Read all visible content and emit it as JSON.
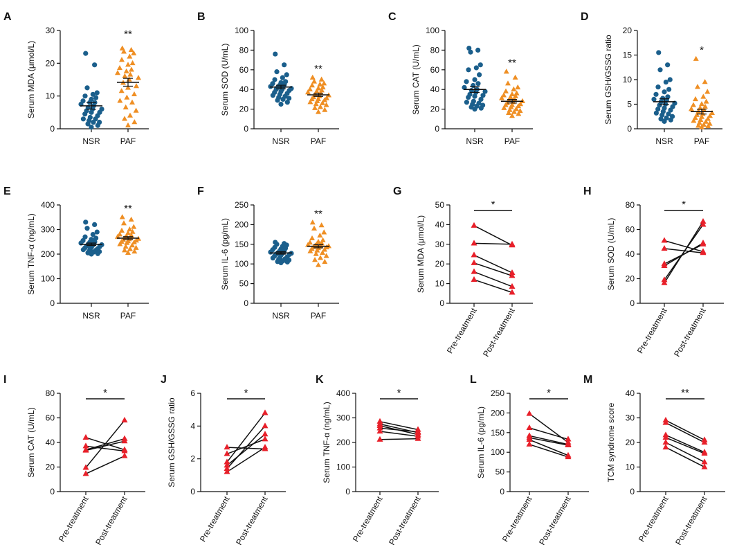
{
  "colors": {
    "nsr": "#1b5f8c",
    "paf": "#ef8f24",
    "pair_marker": "#e8202a",
    "pair_line": "#111111",
    "axis": "#111111"
  },
  "chart_data": [
    {
      "panel": "A",
      "type": "scatter",
      "ylabel": "Serum MDA (μmol/L)",
      "ylim": [
        0,
        30
      ],
      "yticks": [
        0,
        10,
        20,
        30
      ],
      "categories": [
        "NSR",
        "PAF"
      ],
      "significance": "**",
      "series": [
        {
          "name": "NSR",
          "mean": 7.0,
          "sem": 1.0,
          "values": [
            23,
            19.5,
            12.5,
            11,
            10.5,
            10,
            9.5,
            9,
            8.5,
            8,
            8,
            7.5,
            7,
            6.5,
            6,
            6,
            5.5,
            5,
            5,
            4.5,
            4,
            3.5,
            3,
            3,
            2.5,
            2,
            2,
            1.5,
            1,
            0.5
          ]
        },
        {
          "name": "PAF",
          "mean": 14.2,
          "sem": 1.2,
          "values": [
            24.5,
            24,
            23.5,
            23,
            22,
            21,
            20,
            19.5,
            18.5,
            18,
            17.5,
            17,
            16.5,
            16,
            15.5,
            15,
            14,
            13,
            12.5,
            11.5,
            10.5,
            9.5,
            8.5,
            8,
            6.5,
            5.5,
            4,
            3,
            2,
            1
          ]
        }
      ]
    },
    {
      "panel": "B",
      "type": "scatter",
      "ylabel": "Serum SOD (U/mL)",
      "ylim": [
        0,
        100
      ],
      "yticks": [
        0,
        20,
        40,
        60,
        80,
        100
      ],
      "categories": [
        "NSR",
        "PAF"
      ],
      "significance": "**",
      "series": [
        {
          "name": "NSR",
          "mean": 42.5,
          "sem": 1.8,
          "values": [
            76,
            65,
            58,
            55,
            52,
            50,
            48,
            47,
            46,
            45,
            44,
            43,
            43,
            42,
            41,
            40,
            40,
            39,
            38,
            37,
            36,
            35,
            34,
            33,
            32,
            31,
            30,
            29,
            27,
            25
          ]
        },
        {
          "name": "PAF",
          "mean": 34.5,
          "sem": 1.6,
          "values": [
            52,
            50,
            48,
            46,
            45,
            44,
            42,
            41,
            40,
            39,
            38,
            37,
            36,
            35,
            34,
            33,
            32,
            31,
            30,
            30,
            29,
            28,
            27,
            26,
            25,
            24,
            22,
            21,
            19,
            17
          ]
        }
      ]
    },
    {
      "panel": "C",
      "type": "scatter",
      "ylabel": "Serum CAT (U/mL)",
      "ylim": [
        0,
        100
      ],
      "yticks": [
        0,
        20,
        40,
        60,
        80,
        100
      ],
      "categories": [
        "NSR",
        "PAF"
      ],
      "significance": "**",
      "series": [
        {
          "name": "NSR",
          "mean": 40.0,
          "sem": 3.0,
          "values": [
            82,
            80,
            78,
            65,
            62,
            60,
            55,
            50,
            48,
            46,
            44,
            42,
            40,
            39,
            38,
            37,
            35,
            34,
            33,
            32,
            30,
            28,
            27,
            26,
            25,
            24,
            23,
            22,
            21,
            20
          ]
        },
        {
          "name": "PAF",
          "mean": 28.0,
          "sem": 1.8,
          "values": [
            58,
            52,
            46,
            42,
            40,
            38,
            36,
            35,
            34,
            33,
            32,
            31,
            30,
            29,
            28,
            27,
            26,
            25,
            24,
            24,
            23,
            22,
            21,
            20,
            19,
            18,
            17,
            16,
            15,
            13
          ]
        }
      ]
    },
    {
      "panel": "D",
      "type": "scatter",
      "ylabel": "Serum GSH/GSSG ratio",
      "ylim": [
        0,
        20
      ],
      "yticks": [
        0,
        5,
        10,
        15,
        20
      ],
      "categories": [
        "NSR",
        "PAF"
      ],
      "significance": "*",
      "series": [
        {
          "name": "NSR",
          "mean": 5.5,
          "sem": 0.6,
          "values": [
            15.5,
            13,
            12,
            10,
            9.5,
            8.5,
            8,
            7.5,
            7,
            6.5,
            6.2,
            6,
            5.8,
            5.5,
            5.2,
            5,
            4.8,
            4.5,
            4.2,
            4,
            3.8,
            3.5,
            3.2,
            3,
            2.8,
            2.5,
            2.2,
            2,
            1.8,
            1.5
          ]
        },
        {
          "name": "PAF",
          "mean": 3.5,
          "sem": 0.5,
          "values": [
            14.2,
            9.5,
            8.5,
            7.5,
            6.5,
            6,
            5.5,
            5,
            4.8,
            4.5,
            4.2,
            4,
            3.8,
            3.5,
            3.2,
            3,
            2.8,
            2.6,
            2.4,
            2.2,
            2,
            1.8,
            1.6,
            1.4,
            1.2,
            1,
            0.8,
            0.6,
            0.5,
            0.3
          ]
        }
      ]
    },
    {
      "panel": "E",
      "type": "scatter",
      "ylabel": "Serum TNF-α (ng/mL)",
      "ylim": [
        0,
        400
      ],
      "yticks": [
        0,
        100,
        200,
        300,
        400
      ],
      "categories": [
        "NSR",
        "PAF"
      ],
      "significance": "**",
      "series": [
        {
          "name": "NSR",
          "mean": 240,
          "sem": 5,
          "values": [
            330,
            320,
            305,
            290,
            280,
            270,
            265,
            260,
            255,
            250,
            248,
            245,
            242,
            240,
            238,
            235,
            232,
            230,
            228,
            225,
            222,
            220,
            218,
            215,
            212,
            210,
            208,
            205,
            202,
            200
          ]
        },
        {
          "name": "PAF",
          "mean": 265,
          "sem": 6,
          "values": [
            350,
            340,
            325,
            310,
            300,
            295,
            290,
            285,
            280,
            275,
            272,
            270,
            268,
            265,
            262,
            260,
            258,
            255,
            252,
            250,
            248,
            245,
            240,
            235,
            230,
            225,
            220,
            215,
            210,
            205
          ]
        }
      ]
    },
    {
      "panel": "F",
      "type": "scatter",
      "ylabel": "Serum IL-6 (pg/mL)",
      "ylim": [
        0,
        250
      ],
      "yticks": [
        0,
        50,
        100,
        150,
        200,
        250
      ],
      "categories": [
        "NSR",
        "PAF"
      ],
      "significance": "**",
      "series": [
        {
          "name": "NSR",
          "mean": 128,
          "sem": 3,
          "values": [
            155,
            152,
            150,
            148,
            145,
            142,
            140,
            138,
            136,
            134,
            132,
            130,
            129,
            128,
            127,
            126,
            125,
            124,
            122,
            120,
            118,
            116,
            115,
            113,
            112,
            110,
            108,
            106,
            105,
            103
          ]
        },
        {
          "name": "PAF",
          "mean": 145,
          "sem": 4,
          "values": [
            205,
            198,
            190,
            180,
            172,
            165,
            160,
            156,
            154,
            152,
            150,
            148,
            147,
            146,
            145,
            144,
            143,
            142,
            140,
            138,
            136,
            134,
            132,
            128,
            125,
            120,
            115,
            110,
            105,
            97
          ]
        }
      ]
    },
    {
      "panel": "G",
      "type": "paired",
      "ylabel": "Serum MDA (μmol/L)",
      "ylim": [
        0,
        50
      ],
      "yticks": [
        0,
        10,
        20,
        30,
        40,
        50
      ],
      "categories": [
        "Pre-treatment",
        "Post-treatment"
      ],
      "significance": "*",
      "pairs": [
        [
          39.5,
          29.5
        ],
        [
          30.5,
          30
        ],
        [
          24.5,
          15.5
        ],
        [
          20.5,
          14
        ],
        [
          16,
          8.5
        ],
        [
          12,
          5.5
        ]
      ]
    },
    {
      "panel": "H",
      "type": "paired",
      "ylabel": "Serum SOD (U/mL)",
      "ylim": [
        0,
        80
      ],
      "yticks": [
        0,
        20,
        40,
        60,
        80
      ],
      "categories": [
        "Pre-treatment",
        "Post-treatment"
      ],
      "significance": "*",
      "pairs": [
        [
          51,
          42
        ],
        [
          44.5,
          41
        ],
        [
          32,
          48
        ],
        [
          30.5,
          49
        ],
        [
          19,
          64
        ],
        [
          16.5,
          66.5
        ]
      ]
    },
    {
      "panel": "I",
      "type": "paired",
      "ylabel": "Serum CAT (U/mL)",
      "ylim": [
        0,
        80
      ],
      "yticks": [
        0,
        20,
        40,
        60,
        80
      ],
      "categories": [
        "Pre-treatment",
        "Post-treatment"
      ],
      "significance": "*",
      "pairs": [
        [
          44,
          34
        ],
        [
          37,
          33
        ],
        [
          34,
          43
        ],
        [
          33.5,
          41
        ],
        [
          19.5,
          58
        ],
        [
          14.5,
          29
        ]
      ]
    },
    {
      "panel": "J",
      "type": "paired",
      "ylabel": "Serum GSH/GSSG ratio",
      "ylim": [
        0,
        6
      ],
      "yticks": [
        0,
        2,
        4,
        6
      ],
      "categories": [
        "Pre-treatment",
        "Post-treatment"
      ],
      "significance": "*",
      "pairs": [
        [
          2.7,
          2.6
        ],
        [
          2.3,
          3.2
        ],
        [
          1.8,
          4.8
        ],
        [
          1.6,
          3.5
        ],
        [
          1.4,
          4.0
        ],
        [
          1.2,
          2.7
        ]
      ]
    },
    {
      "panel": "K",
      "type": "paired",
      "ylabel": "Serum TNF-α (ng/mL)",
      "ylim": [
        0,
        400
      ],
      "yticks": [
        0,
        100,
        200,
        300,
        400
      ],
      "categories": [
        "Pre-treatment",
        "Post-treatment"
      ],
      "significance": "*",
      "pairs": [
        [
          285,
          252
        ],
        [
          275,
          240
        ],
        [
          268,
          232
        ],
        [
          258,
          243
        ],
        [
          245,
          225
        ],
        [
          212,
          215
        ]
      ]
    },
    {
      "panel": "L",
      "type": "paired",
      "ylabel": "Serum IL-6 (pg/mL)",
      "ylim": [
        0,
        250
      ],
      "yticks": [
        0,
        50,
        100,
        150,
        200,
        250
      ],
      "categories": [
        "Pre-treatment",
        "Post-treatment"
      ],
      "significance": "*",
      "pairs": [
        [
          198,
          125
        ],
        [
          162,
          133
        ],
        [
          142,
          120
        ],
        [
          137,
          118
        ],
        [
          132,
          92
        ],
        [
          120,
          88
        ]
      ]
    },
    {
      "panel": "M",
      "type": "paired",
      "ylabel": "TCM syndrome score",
      "ylim": [
        0,
        40
      ],
      "yticks": [
        0,
        10,
        20,
        30,
        40
      ],
      "categories": [
        "Pre-treatment",
        "Post-treatment"
      ],
      "significance": "**",
      "pairs": [
        [
          29,
          21
        ],
        [
          28,
          20
        ],
        [
          23,
          16
        ],
        [
          22,
          15.5
        ],
        [
          20,
          12
        ],
        [
          18,
          10
        ]
      ]
    }
  ]
}
